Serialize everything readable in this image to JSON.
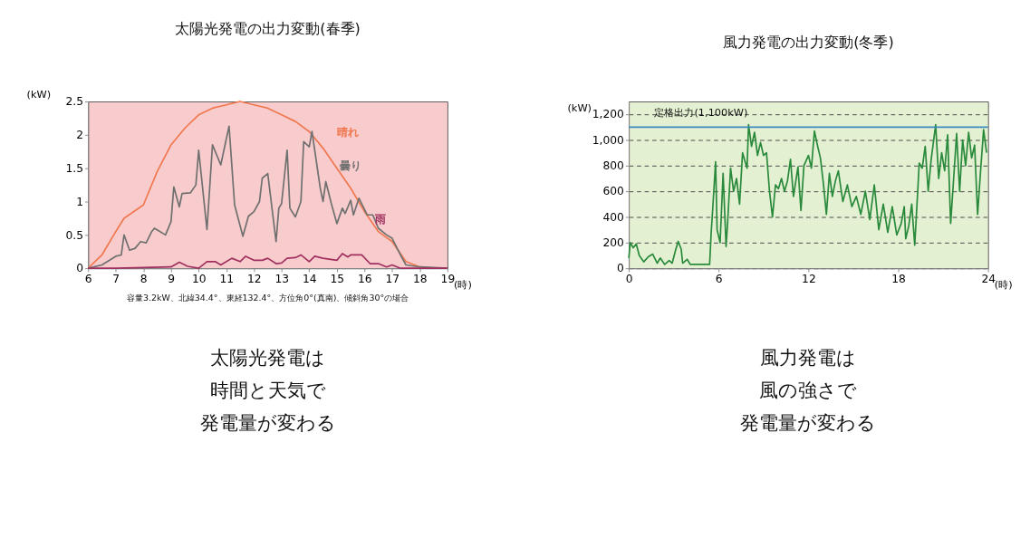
{
  "chart_data": [
    {
      "type": "line",
      "title": "太陽光発電の出力変動(春季)",
      "xlabel": "(時)",
      "ylabel": "(kW)",
      "xlim": [
        6,
        19
      ],
      "xticks": [
        6,
        7,
        8,
        9,
        10,
        11,
        12,
        13,
        14,
        15,
        16,
        17,
        18,
        19
      ],
      "ylim": [
        0,
        2.5
      ],
      "yticks": [
        0,
        0.5,
        1,
        1.5,
        2,
        2.5
      ],
      "grid": false,
      "marker": "none",
      "series": [
        {
          "name": "晴れ",
          "color": "#f07850",
          "x": [
            6,
            6.5,
            7,
            7.3,
            8,
            8.5,
            9,
            9.5,
            10,
            10.5,
            11,
            11.5,
            12,
            12.5,
            13,
            13.5,
            14,
            14.5,
            15,
            15.5,
            16,
            16.5,
            17,
            17.5,
            18,
            18.5,
            19
          ],
          "values": [
            0,
            0.2,
            0.55,
            0.75,
            0.95,
            1.45,
            1.85,
            2.1,
            2.3,
            2.4,
            2.45,
            2.5,
            2.45,
            2.4,
            2.3,
            2.2,
            2.05,
            1.8,
            1.5,
            1.2,
            0.85,
            0.55,
            0.4,
            0.1,
            0.02,
            0,
            0
          ]
        },
        {
          "name": "曇り",
          "color": "#707070",
          "x": [
            6,
            6.5,
            7,
            7.2,
            7.3,
            7.5,
            7.7,
            7.9,
            8.1,
            8.3,
            8.4,
            8.8,
            9.0,
            9.1,
            9.3,
            9.4,
            9.7,
            9.9,
            10.0,
            10.3,
            10.5,
            10.8,
            11.1,
            11.3,
            11.6,
            11.8,
            12.0,
            12.2,
            12.3,
            12.5,
            12.8,
            12.9,
            13.0,
            13.2,
            13.3,
            13.5,
            13.7,
            13.8,
            14.0,
            14.1,
            14.4,
            14.5,
            14.6,
            14.8,
            15.0,
            15.2,
            15.3,
            15.5,
            15.6,
            15.8,
            16.1,
            16.3,
            16.5,
            16.8,
            17.0,
            17.3,
            17.5,
            18.0,
            19
          ],
          "values": [
            0,
            0.05,
            0.18,
            0.2,
            0.5,
            0.27,
            0.3,
            0.4,
            0.38,
            0.55,
            0.6,
            0.5,
            0.7,
            1.22,
            0.92,
            1.12,
            1.13,
            1.25,
            1.77,
            0.58,
            1.85,
            1.55,
            2.13,
            0.95,
            0.48,
            0.78,
            0.85,
            1.0,
            1.35,
            1.42,
            0.4,
            0.9,
            0.97,
            1.77,
            0.9,
            0.77,
            1.0,
            1.9,
            1.82,
            2.05,
            1.2,
            1.0,
            1.3,
            0.97,
            0.67,
            0.9,
            0.82,
            1.02,
            0.8,
            1.05,
            0.8,
            0.8,
            0.6,
            0.5,
            0.45,
            0.2,
            0.05,
            0.02,
            0
          ]
        },
        {
          "name": "雨",
          "color": "#a03060",
          "x": [
            6,
            7,
            8,
            9,
            9.3,
            9.6,
            10,
            10.3,
            10.6,
            10.8,
            11.2,
            11.5,
            11.7,
            12,
            12.3,
            12.5,
            12.8,
            13,
            13.2,
            13.5,
            13.7,
            14.0,
            14.2,
            14.5,
            15,
            15.2,
            15.4,
            15.5,
            15.9,
            16.2,
            16.5,
            16.8,
            17,
            17.3,
            19
          ],
          "values": [
            0,
            0,
            0.01,
            0.02,
            0.09,
            0.03,
            0,
            0.1,
            0.1,
            0.05,
            0.15,
            0.1,
            0.18,
            0.12,
            0.12,
            0.15,
            0.07,
            0.08,
            0.15,
            0.16,
            0.2,
            0.1,
            0.18,
            0.15,
            0.12,
            0.22,
            0.17,
            0.2,
            0.2,
            0.07,
            0.07,
            0.02,
            0.05,
            0,
            0
          ]
        }
      ],
      "annotations": [
        "容量3.2kW、北緯34.4°、東経132.4°、方位角0°(真南)、傾斜角30°の場合",
        "太陽光発電は時間と天気で発電量が変わる"
      ]
    },
    {
      "type": "line",
      "title": "風力発電の出力変動(冬季)",
      "xlabel": "(時)",
      "ylabel": "(kW)",
      "xlim": [
        0,
        24
      ],
      "xticks": [
        0,
        6,
        12,
        18,
        24
      ],
      "ylim": [
        0,
        1300
      ],
      "yticks": [
        0,
        200,
        400,
        600,
        800,
        {
          "value": 1000,
          "label": "1,000"
        },
        {
          "value": 1200,
          "label": "1,200"
        }
      ],
      "grid": "y",
      "marker": "none",
      "ref_lines": [
        {
          "axis": "y",
          "value": 1100,
          "label": "定格出力(1,100kW)",
          "color": "#3a8ac0"
        }
      ],
      "series": [
        {
          "color": "#2a8a3c",
          "x": [
            0,
            0.1,
            0.3,
            0.5,
            0.7,
            1,
            1.3,
            1.6,
            1.9,
            2.1,
            2.4,
            2.7,
            2.9,
            3.1,
            3.3,
            3.5,
            3.6,
            3.9,
            4.1,
            5.4,
            5.5,
            5.6,
            5.8,
            5.9,
            6.1,
            6.3,
            6.5,
            6.6,
            6.8,
            7.0,
            7.2,
            7.4,
            7.6,
            7.9,
            8.0,
            8.2,
            8.4,
            8.6,
            8.8,
            9.0,
            9.2,
            9.4,
            9.6,
            9.8,
            10.0,
            10.2,
            10.4,
            10.6,
            10.8,
            11.0,
            11.3,
            11.5,
            11.7,
            12.0,
            12.2,
            12.4,
            12.6,
            12.8,
            13.0,
            13.2,
            13.4,
            13.6,
            13.8,
            14.0,
            14.3,
            14.6,
            14.9,
            15.2,
            15.5,
            15.8,
            16.1,
            16.4,
            16.7,
            17.0,
            17.3,
            17.6,
            17.9,
            18.2,
            18.4,
            18.5,
            18.7,
            18.9,
            19.1,
            19.3,
            19.4,
            19.6,
            19.8,
            20.0,
            20.2,
            20.5,
            20.7,
            20.9,
            21.1,
            21.3,
            21.5,
            21.7,
            21.9,
            22.1,
            22.3,
            22.5,
            22.7,
            22.9,
            23.1,
            23.3,
            23.5,
            23.7,
            23.9
          ],
          "values": [
            80,
            200,
            160,
            190,
            100,
            50,
            90,
            110,
            40,
            80,
            30,
            60,
            40,
            130,
            210,
            150,
            40,
            70,
            30,
            30,
            270,
            450,
            830,
            300,
            200,
            740,
            170,
            350,
            780,
            600,
            700,
            500,
            900,
            780,
            1120,
            950,
            1060,
            880,
            980,
            880,
            900,
            600,
            400,
            650,
            620,
            700,
            600,
            680,
            850,
            560,
            790,
            450,
            800,
            880,
            780,
            1070,
            960,
            860,
            660,
            420,
            740,
            560,
            680,
            760,
            520,
            650,
            480,
            560,
            420,
            600,
            380,
            650,
            300,
            500,
            280,
            480,
            260,
            350,
            480,
            230,
            330,
            500,
            180,
            600,
            820,
            780,
            950,
            600,
            850,
            1120,
            700,
            900,
            760,
            1040,
            350,
            700,
            1050,
            600,
            1000,
            800,
            1060,
            860,
            960,
            420,
            760,
            1080,
            900
          ]
        }
      ],
      "annotations": [
        "風力発電は風の強さで発電量が変わる"
      ]
    }
  ]
}
